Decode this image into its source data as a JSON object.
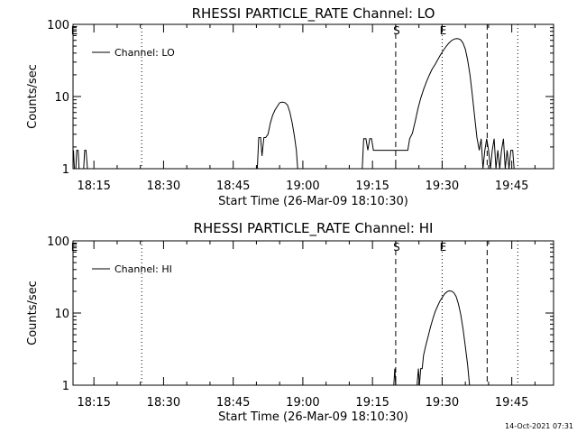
{
  "footer": {
    "timestamp": "14-Oct-2021 07:31"
  },
  "chart_data": [
    {
      "type": "line",
      "title": "RHESSI PARTICLE_RATE Channel: LO",
      "xlabel": "Start Time (26-Mar-09 18:10:30)",
      "ylabel": "Counts/sec",
      "x_unit": "minutes since 18:00",
      "x_ticks": [
        {
          "t": 15,
          "label": "18:15"
        },
        {
          "t": 30,
          "label": "18:30"
        },
        {
          "t": 45,
          "label": "18:45"
        },
        {
          "t": 60,
          "label": "19:00"
        },
        {
          "t": 75,
          "label": "19:15"
        },
        {
          "t": 90,
          "label": "19:30"
        },
        {
          "t": 105,
          "label": "19:45"
        }
      ],
      "xlim": [
        10.5,
        114
      ],
      "y_scale": "log",
      "ylim": [
        1,
        100
      ],
      "y_ticks": [
        {
          "v": 1,
          "label": "1"
        },
        {
          "v": 10,
          "label": "10"
        },
        {
          "v": 100,
          "label": "100"
        }
      ],
      "legend": {
        "position": "top-left",
        "entries": [
          {
            "label": "Channel: LO"
          }
        ]
      },
      "markers": [
        {
          "t": 10.6,
          "label": "E",
          "style": "none"
        },
        {
          "t": 25.3,
          "label": "",
          "style": "dotted"
        },
        {
          "t": 80.0,
          "label": "S",
          "style": "dashed"
        },
        {
          "t": 90.0,
          "label": "E",
          "style": "dotted"
        },
        {
          "t": 99.7,
          "label": "",
          "style": "dashed"
        },
        {
          "t": 106.3,
          "label": "",
          "style": "dotted"
        }
      ],
      "series": [
        {
          "name": "Channel: LO",
          "segments": [
            [
              [
                10.6,
                1.8
              ],
              [
                10.8,
                1
              ],
              [
                11.1,
                1
              ],
              [
                11.3,
                1.8
              ],
              [
                11.6,
                1.8
              ],
              [
                11.8,
                1
              ]
            ],
            [
              [
                12.8,
                1
              ],
              [
                13.0,
                1.8
              ],
              [
                13.3,
                1.8
              ],
              [
                13.6,
                1
              ]
            ],
            [
              [
                50.2,
                1
              ],
              [
                50.5,
                2.7
              ],
              [
                50.9,
                2.7
              ],
              [
                51.2,
                1.5
              ],
              [
                51.6,
                2.7
              ],
              [
                52.0,
                2.7
              ],
              [
                52.5,
                3.0
              ],
              [
                53.0,
                4.3
              ],
              [
                53.5,
                5.5
              ],
              [
                54.0,
                6.5
              ],
              [
                54.5,
                7.3
              ],
              [
                55.0,
                8.2
              ],
              [
                55.6,
                8.4
              ],
              [
                56.2,
                8.2
              ],
              [
                56.7,
                7.6
              ],
              [
                57.2,
                6.1
              ],
              [
                57.7,
                4.3
              ],
              [
                58.2,
                2.8
              ],
              [
                58.6,
                1.8
              ],
              [
                58.9,
                1
              ]
            ],
            [
              [
                72.8,
                1
              ],
              [
                73.1,
                2.6
              ],
              [
                73.6,
                2.6
              ],
              [
                74.0,
                1.8
              ],
              [
                74.4,
                2.6
              ],
              [
                74.8,
                2.6
              ],
              [
                75.2,
                1.8
              ],
              [
                82.6,
                1.8
              ],
              [
                83.0,
                2.6
              ],
              [
                83.6,
                3.1
              ],
              [
                84.2,
                4.5
              ],
              [
                84.8,
                6.8
              ],
              [
                85.4,
                9.5
              ],
              [
                86.0,
                12.5
              ],
              [
                86.6,
                15.9
              ],
              [
                87.2,
                19.6
              ],
              [
                87.8,
                23.7
              ],
              [
                88.4,
                27.3
              ],
              [
                89.0,
                32.0
              ],
              [
                89.6,
                37.3
              ],
              [
                90.2,
                42.9
              ],
              [
                90.8,
                48.9
              ],
              [
                91.4,
                54.5
              ],
              [
                92.0,
                59.4
              ],
              [
                92.6,
                62.5
              ],
              [
                93.1,
                63.4
              ],
              [
                93.6,
                63.0
              ],
              [
                94.0,
                61.0
              ],
              [
                94.5,
                55.0
              ],
              [
                95.0,
                45.0
              ],
              [
                95.5,
                32.0
              ],
              [
                96.0,
                20.0
              ],
              [
                96.5,
                10.5
              ],
              [
                97.0,
                5.2
              ],
              [
                97.5,
                2.7
              ],
              [
                98.0,
                1.8
              ],
              [
                98.4,
                2.6
              ],
              [
                98.8,
                1
              ],
              [
                99.2,
                1.8
              ],
              [
                99.6,
                2.6
              ],
              [
                100.0,
                1.8
              ],
              [
                100.4,
                1
              ],
              [
                100.8,
                1.8
              ],
              [
                101.2,
                2.6
              ],
              [
                101.6,
                1
              ],
              [
                102.0,
                1.8
              ],
              [
                102.4,
                1
              ],
              [
                102.8,
                1.8
              ],
              [
                103.2,
                2.6
              ],
              [
                103.6,
                1
              ],
              [
                104.0,
                1.8
              ],
              [
                104.4,
                1
              ],
              [
                104.8,
                1.8
              ],
              [
                105.2,
                1.8
              ],
              [
                105.5,
                1
              ]
            ]
          ]
        }
      ]
    },
    {
      "type": "line",
      "title": "RHESSI PARTICLE_RATE Channel: HI",
      "xlabel": "Start Time (26-Mar-09 18:10:30)",
      "ylabel": "Counts/sec",
      "x_unit": "minutes since 18:00",
      "x_ticks": [
        {
          "t": 15,
          "label": "18:15"
        },
        {
          "t": 30,
          "label": "18:30"
        },
        {
          "t": 45,
          "label": "18:45"
        },
        {
          "t": 60,
          "label": "19:00"
        },
        {
          "t": 75,
          "label": "19:15"
        },
        {
          "t": 90,
          "label": "19:30"
        },
        {
          "t": 105,
          "label": "19:45"
        }
      ],
      "xlim": [
        10.5,
        114
      ],
      "y_scale": "log",
      "ylim": [
        1,
        100
      ],
      "y_ticks": [
        {
          "v": 1,
          "label": "1"
        },
        {
          "v": 10,
          "label": "10"
        },
        {
          "v": 100,
          "label": "100"
        }
      ],
      "legend": {
        "position": "top-left",
        "entries": [
          {
            "label": "Channel: HI"
          }
        ]
      },
      "markers": [
        {
          "t": 10.6,
          "label": "E",
          "style": "none"
        },
        {
          "t": 25.3,
          "label": "",
          "style": "dotted"
        },
        {
          "t": 80.0,
          "label": "S",
          "style": "dashed"
        },
        {
          "t": 90.0,
          "label": "E",
          "style": "dotted"
        },
        {
          "t": 99.7,
          "label": "",
          "style": "dashed"
        },
        {
          "t": 106.3,
          "label": "",
          "style": "dotted"
        }
      ],
      "series": [
        {
          "name": "Channel: HI",
          "segments": [
            [
              [
                79.6,
                1
              ],
              [
                79.8,
                1.7
              ],
              [
                80.0,
                1
              ]
            ],
            [
              [
                84.6,
                1
              ],
              [
                84.9,
                1.7
              ],
              [
                85.1,
                1
              ],
              [
                85.4,
                1.7
              ],
              [
                85.7,
                1.7
              ],
              [
                86.0,
                2.6
              ],
              [
                86.5,
                3.6
              ],
              [
                87.0,
                4.8
              ],
              [
                87.5,
                6.4
              ],
              [
                88.0,
                8.3
              ],
              [
                88.5,
                10.5
              ],
              [
                89.0,
                12.4
              ],
              [
                89.5,
                14.5
              ],
              [
                90.0,
                16.4
              ],
              [
                90.5,
                18.3
              ],
              [
                91.0,
                19.6
              ],
              [
                91.5,
                20.3
              ],
              [
                92.0,
                20.1
              ],
              [
                92.5,
                19.2
              ],
              [
                93.0,
                17.0
              ],
              [
                93.5,
                13.5
              ],
              [
                94.0,
                9.6
              ],
              [
                94.5,
                6.0
              ],
              [
                95.0,
                3.4
              ],
              [
                95.5,
                1.9
              ],
              [
                95.9,
                1
              ]
            ]
          ]
        }
      ]
    }
  ]
}
